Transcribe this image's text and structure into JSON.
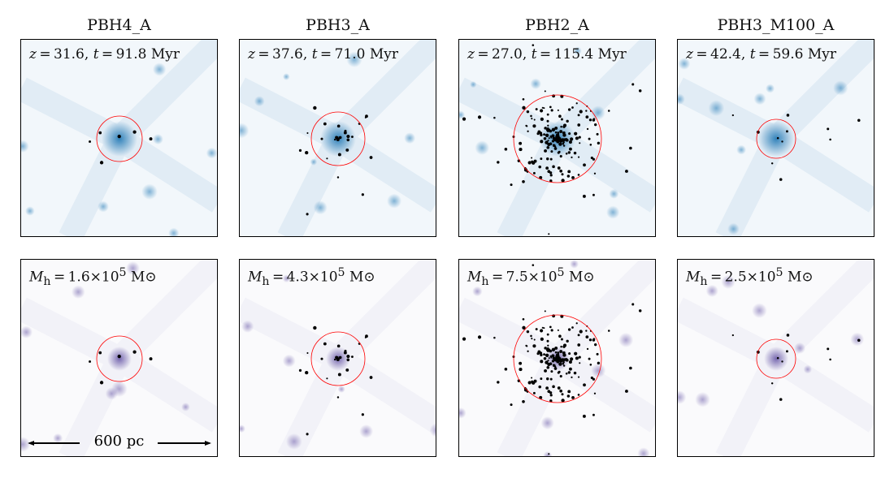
{
  "columns": [
    {
      "title": "PBH4_A",
      "z": "31.6",
      "t": "91.8",
      "mass": "1.6",
      "dots": 6,
      "spread": 40
    },
    {
      "title": "PBH3_A",
      "z": "37.6",
      "t": "71.0",
      "mass": "4.3",
      "dots": 30,
      "spread": 50
    },
    {
      "title": "PBH2_A",
      "z": "27.0",
      "t": "115.4",
      "mass": "7.5",
      "dots": 220,
      "spread": 55
    },
    {
      "title": "PBH3_M100_A",
      "z": "42.4",
      "t": "59.6",
      "mass": "2.5",
      "dots": 12,
      "spread": 80
    }
  ],
  "time_unit": "Myr",
  "mass_unit": "M⊙",
  "mass_exponent": "5",
  "scale_bar": {
    "label": "600 pc"
  },
  "colors": {
    "gas": "#1f77b4",
    "dm": "#6a5aa8",
    "circle": "#ff0000",
    "points": "#000000"
  }
}
